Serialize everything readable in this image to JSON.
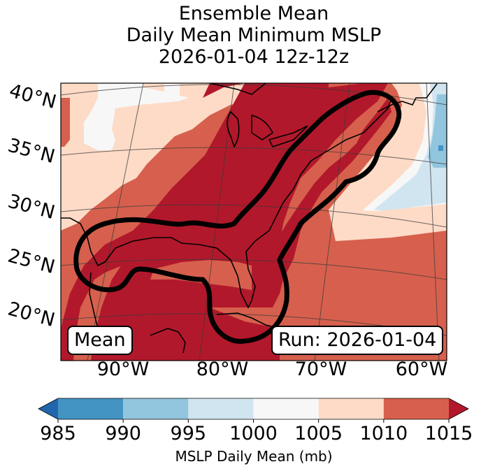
{
  "title": {
    "line1": "Ensemble Mean",
    "line2": "Daily Mean Minimum MSLP",
    "line3": "2026-01-04 12z-12z"
  },
  "map": {
    "lat_labels": [
      "40°N",
      "35°N",
      "30°N",
      "25°N",
      "20°N"
    ],
    "lon_labels": [
      "90°W",
      "80°W",
      "70°W",
      "60°W"
    ],
    "mean_box": "Mean",
    "run_box": "Run: 2026-01-04",
    "contour_description": "Thick black outline enclosing Gulf of Mexico / US East Coast low-pressure track region",
    "regions": [
      {
        "name": "great-plains-west",
        "value_range": "1000-1010"
      },
      {
        "name": "eastern-us-gulf",
        "value_range": "1010-1015+"
      },
      {
        "name": "northwest-atlantic",
        "value_range": "985-1005"
      },
      {
        "name": "western-atlantic-south",
        "value_range": "1005-1010"
      }
    ]
  },
  "colorbar": {
    "label": "MSLP Daily Mean (mb)",
    "ticks": [
      "985",
      "990",
      "995",
      "1000",
      "1005",
      "1010",
      "1015"
    ],
    "bins": [
      {
        "from": 985,
        "to": 990,
        "color": "#4393c3"
      },
      {
        "from": 990,
        "to": 995,
        "color": "#92c5de"
      },
      {
        "from": 995,
        "to": 1000,
        "color": "#d1e5f0"
      },
      {
        "from": 1000,
        "to": 1005,
        "color": "#f7f7f7"
      },
      {
        "from": 1005,
        "to": 1010,
        "color": "#fddbc7"
      },
      {
        "from": 1010,
        "to": 1015,
        "color": "#d6604d"
      }
    ],
    "under_color": "#2166ac",
    "over_color": "#b2182b",
    "extend": "both"
  },
  "colors": {
    "c1015": "#b2182b",
    "c1010": "#d6604d",
    "c1005": "#fddbc7",
    "c1000": "#f7f7f7",
    "c995": "#d1e5f0",
    "c990": "#92c5de",
    "c985": "#4393c3"
  }
}
